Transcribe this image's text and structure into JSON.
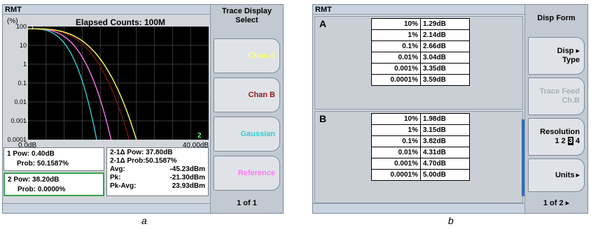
{
  "panel_a": {
    "title": "RMT",
    "chart": {
      "unit_label": "(%)",
      "header": "Elapsed Counts: 100M",
      "y_ticks": [
        "100",
        "10",
        "1",
        "0.1",
        "0.01",
        "0.001",
        "0.0001"
      ],
      "x_min_label": "0.0dB",
      "x_max_label": "40.00dB",
      "marker1_flag": "1",
      "marker2_flag": "2",
      "colors": {
        "chan_a": "#ffff66",
        "chan_b": "#7a1515",
        "gaussian": "#33cccc",
        "reference": "#ff77ee",
        "grid": "#3a3a3a",
        "background": "#000000"
      }
    },
    "marker1": {
      "pow": "1 Pow: 0.40dB",
      "prob": "Prob: 50.1587%"
    },
    "marker2": {
      "pow": "2 Pow: 38.20dB",
      "prob": "Prob: 0.0000%"
    },
    "delta": {
      "pow": "2-1Δ Pow: 37.80dB",
      "prob": "2-1Δ Prob:50.1587%",
      "avg_label": "Avg:",
      "avg_value": "-45.23dBm",
      "pk_label": "Pk:",
      "pk_value": "-21.30dBm",
      "pkavg_label": "Pk-Avg:",
      "pkavg_value": "23.93dBm"
    },
    "softkeys": {
      "header": "Trace Display Select",
      "chan_a": "Chan A",
      "chan_b": "Chan B",
      "gaussian": "Gaussian",
      "reference": "Reference",
      "footer": "1 of 1"
    },
    "caption": "a"
  },
  "panel_b": {
    "title": "RMT",
    "group_a": {
      "label": "A",
      "rows": [
        {
          "p": "10%",
          "v": "1.29dB"
        },
        {
          "p": "1%",
          "v": "2.14dB"
        },
        {
          "p": "0.1%",
          "v": "2.66dB"
        },
        {
          "p": "0.01%",
          "v": "3.04dB"
        },
        {
          "p": "0.001%",
          "v": "3.35dB"
        },
        {
          "p": "0.0001%",
          "v": "3.59dB"
        }
      ]
    },
    "group_b": {
      "label": "B",
      "rows": [
        {
          "p": "10%",
          "v": "1.98dB"
        },
        {
          "p": "1%",
          "v": "3.15dB"
        },
        {
          "p": "0.1%",
          "v": "3.82dB"
        },
        {
          "p": "0.01%",
          "v": "4.31dB"
        },
        {
          "p": "0.001%",
          "v": "4.70dB"
        },
        {
          "p": "0.0001%",
          "v": "5.00dB"
        }
      ]
    },
    "softkeys": {
      "header": "Disp Form",
      "disp_type_1": "Disp",
      "disp_type_2": "Type",
      "trace_feed_1": "Trace Feed",
      "trace_feed_2": "Ch.B",
      "resolution_1": "Resolution",
      "resolution_2": "1 2",
      "resolution_sel": "3",
      "resolution_3": "4",
      "units": "Units",
      "footer": "1 of 2"
    },
    "caption": "b"
  }
}
